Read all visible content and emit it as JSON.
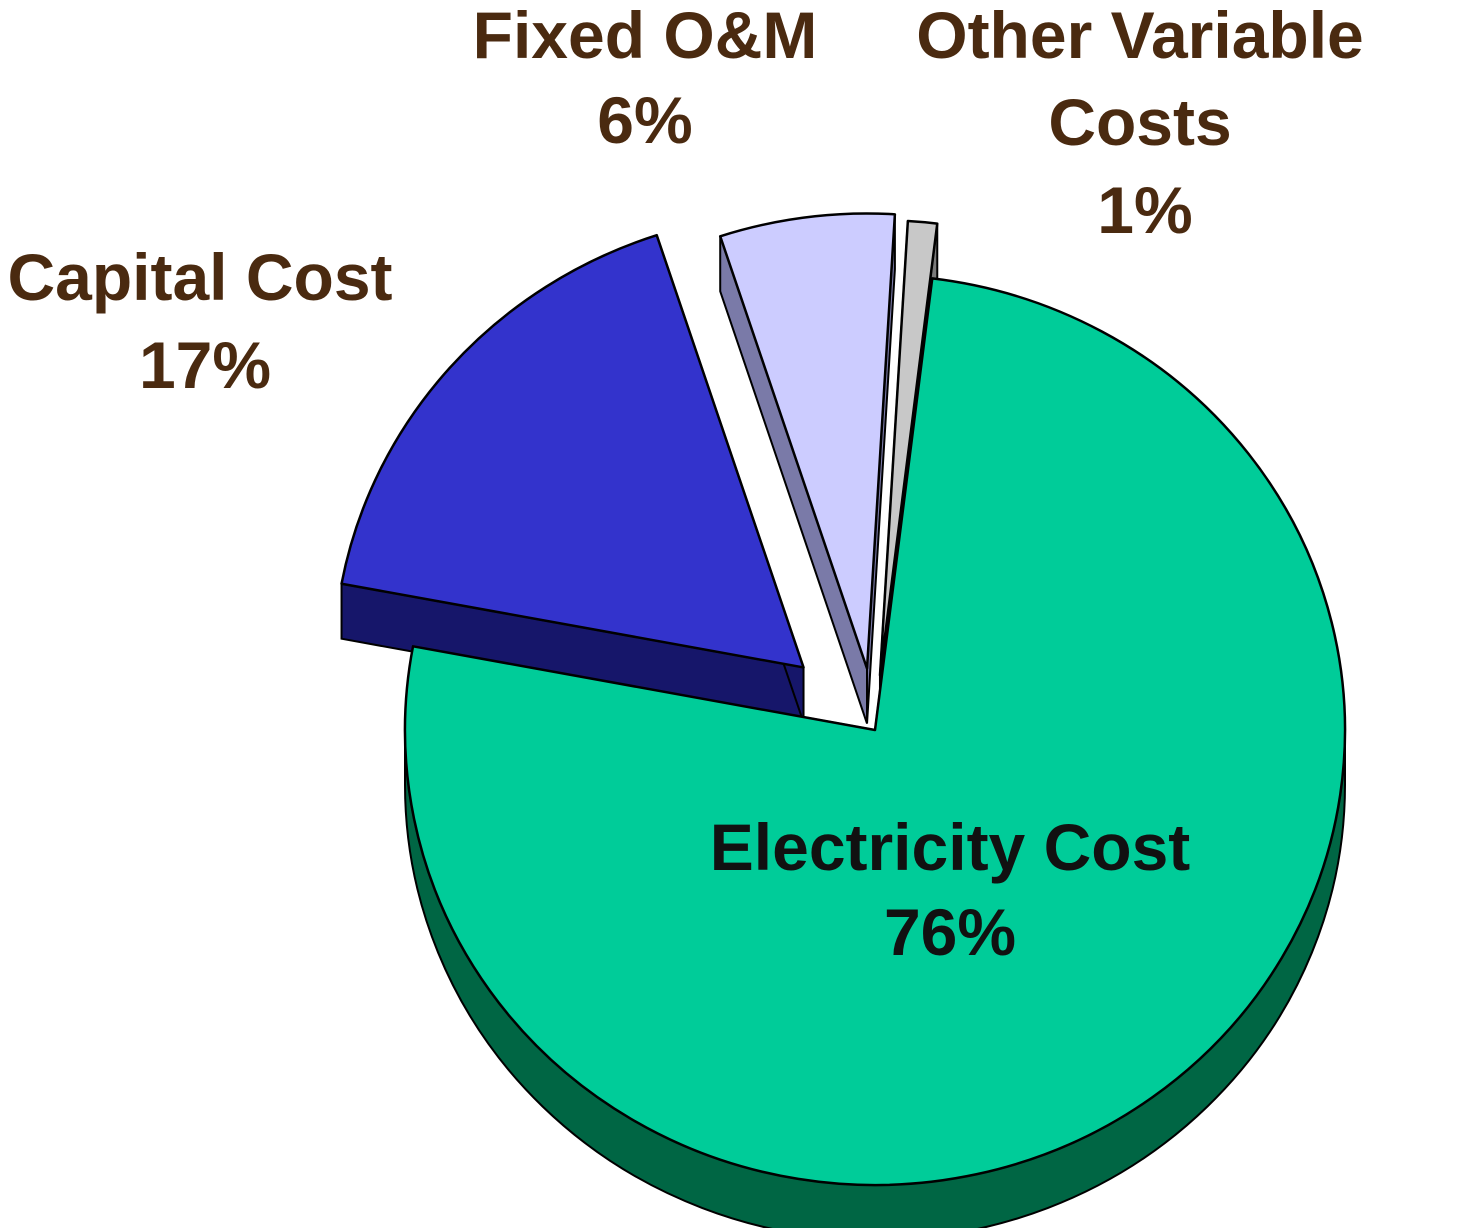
{
  "chart_data": {
    "type": "pie",
    "style": "3d-exploded",
    "legend": "none",
    "slices": [
      {
        "label": "Electricity Cost",
        "value": 76,
        "display": "76%",
        "color": "#00cc99",
        "side_color": "#006644",
        "label_color": "#111111"
      },
      {
        "label": "Capital Cost",
        "value": 17,
        "display": "17%",
        "color": "#3333cc",
        "side_color": "#16166a",
        "label_color": "#4a2a10"
      },
      {
        "label": "Fixed O&M",
        "value": 6,
        "display": "6%",
        "color": "#ccccff",
        "side_color": "#7a7aa8",
        "label_color": "#4a2a10"
      },
      {
        "label": "Other Variable Costs",
        "value": 1,
        "display": "1%",
        "color": "#c8c8c8",
        "side_color": "#7a7a7a",
        "label_color": "#4a2a10"
      }
    ]
  }
}
